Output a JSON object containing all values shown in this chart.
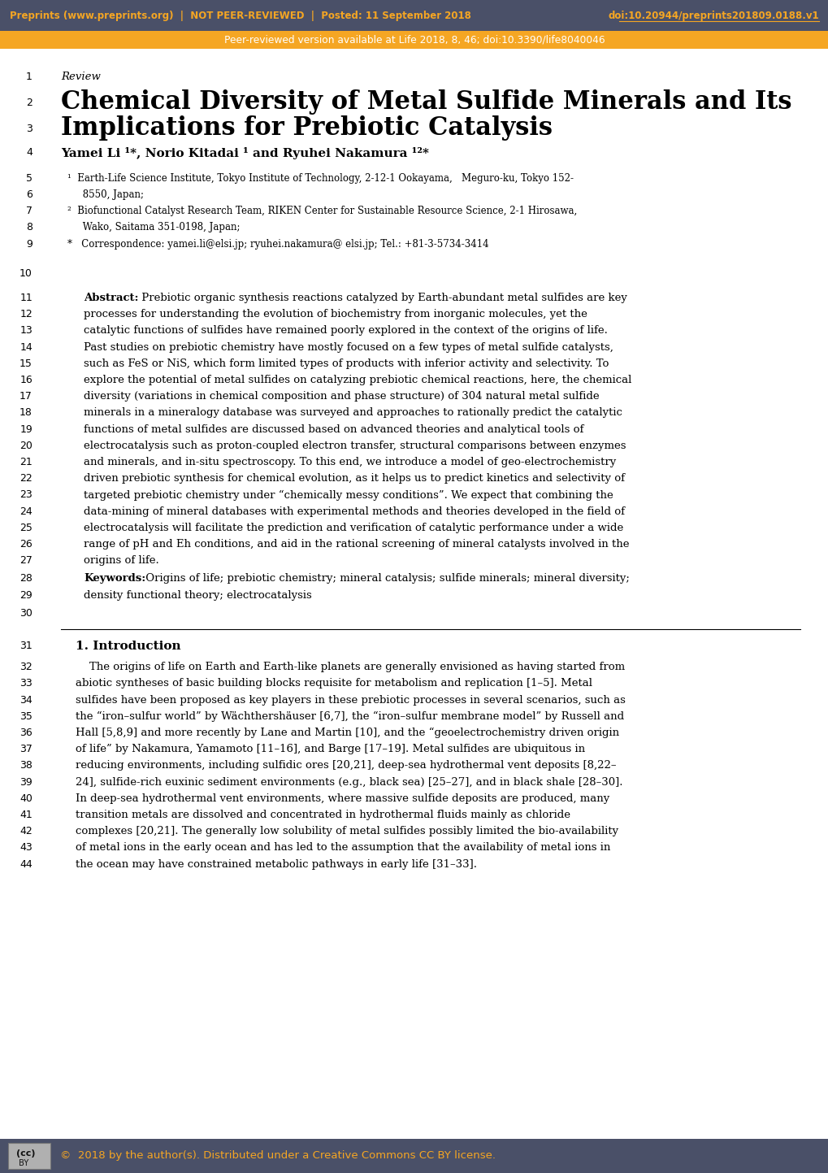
{
  "header_bg": "#4a5068",
  "header_text_color": "#f5a623",
  "header_left": "Preprints (www.preprints.org)  |  NOT PEER-REVIEWED  |  Posted: 11 September 2018",
  "header_right": "doi:10.20944/preprints201809.0188.v1",
  "subheader_bg": "#f5a623",
  "subheader_text": "Peer-reviewed version available at Life 2018, 8, 46; doi:10.3390/life8040046",
  "subheader_text_color": "#ffffff",
  "body_bg": "#ffffff",
  "line1": "Review",
  "line2": "Chemical Diversity of Metal Sulfide Minerals and Its",
  "line3": "Implications for Prebiotic Catalysis",
  "line4": "Yamei Li ¹*, Norio Kitadai ¹ and Ryuhei Nakamura ¹²*",
  "line5": "¹  Earth-Life Science Institute, Tokyo Institute of Technology, 2-12-1 Ookayama,   Meguro-ku, Tokyo 152-",
  "line6": "     8550, Japan;",
  "line7": "²  Biofunctional Catalyst Research Team, RIKEN Center for Sustainable Resource Science, 2-1 Hirosawa,",
  "line8": "     Wako, Saitama 351-0198, Japan;",
  "line9": "*   Correspondence: yamei.li@elsi.jp; ryuhei.nakamura@ elsi.jp; Tel.: +81-3-5734-3414",
  "intro_heading": "1. Introduction",
  "footer_bg": "#4a5068",
  "footer_text": "©  2018 by the author(s). Distributed under a Creative Commons CC BY license.",
  "footer_text_color": "#f5a623",
  "abs_lines": [
    "Prebiotic organic synthesis reactions catalyzed by Earth-abundant metal sulfides are key",
    "processes for understanding the evolution of biochemistry from inorganic molecules, yet the",
    "catalytic functions of sulfides have remained poorly explored in the context of the origins of life.",
    "Past studies on prebiotic chemistry have mostly focused on a few types of metal sulfide catalysts,",
    "such as FeS or NiS, which form limited types of products with inferior activity and selectivity. To",
    "explore the potential of metal sulfides on catalyzing prebiotic chemical reactions, here, the chemical",
    "diversity (variations in chemical composition and phase structure) of 304 natural metal sulfide",
    "minerals in a mineralogy database was surveyed and approaches to rationally predict the catalytic",
    "functions of metal sulfides are discussed based on advanced theories and analytical tools of",
    "electrocatalysis such as proton-coupled electron transfer, structural comparisons between enzymes",
    "and minerals, and in-situ spectroscopy. To this end, we introduce a model of geo-electrochemistry",
    "driven prebiotic synthesis for chemical evolution, as it helps us to predict kinetics and selectivity of",
    "targeted prebiotic chemistry under “chemically messy conditions”. We expect that combining the",
    "data-mining of mineral databases with experimental methods and theories developed in the field of",
    "electrocatalysis will facilitate the prediction and verification of catalytic performance under a wide",
    "range of pH and Eh conditions, and aid in the rational screening of mineral catalysts involved in the",
    "origins of life."
  ],
  "kw_lines": [
    "Origins of life; prebiotic chemistry; mineral catalysis; sulfide minerals; mineral diversity;",
    "density functional theory; electrocatalysis"
  ],
  "intro_lines": [
    "    The origins of life on Earth and Earth-like planets are generally envisioned as having started from",
    "abiotic syntheses of basic building blocks requisite for metabolism and replication [1–5]. Metal",
    "sulfides have been proposed as key players in these prebiotic processes in several scenarios, such as",
    "the “iron–sulfur world” by Wächthershäuser [6,7], the “iron–sulfur membrane model” by Russell and",
    "Hall [5,8,9] and more recently by Lane and Martin [10], and the “geoelectrochemistry driven origin",
    "of life” by Nakamura, Yamamoto [11–16], and Barge [17–19]. Metal sulfides are ubiquitous in",
    "reducing environments, including sulfidic ores [20,21], deep-sea hydrothermal vent deposits [8,22–",
    "24], sulfide-rich euxinic sediment environments (e.g., black sea) [25–27], and in black shale [28–30].",
    "In deep-sea hydrothermal vent environments, where massive sulfide deposits are produced, many",
    "transition metals are dissolved and concentrated in hydrothermal fluids mainly as chloride",
    "complexes [20,21]. The generally low solubility of metal sulfides possibly limited the bio-availability",
    "of metal ions in the early ocean and has led to the assumption that the availability of metal ions in",
    "the ocean may have constrained metabolic pathways in early life [31–33]."
  ]
}
